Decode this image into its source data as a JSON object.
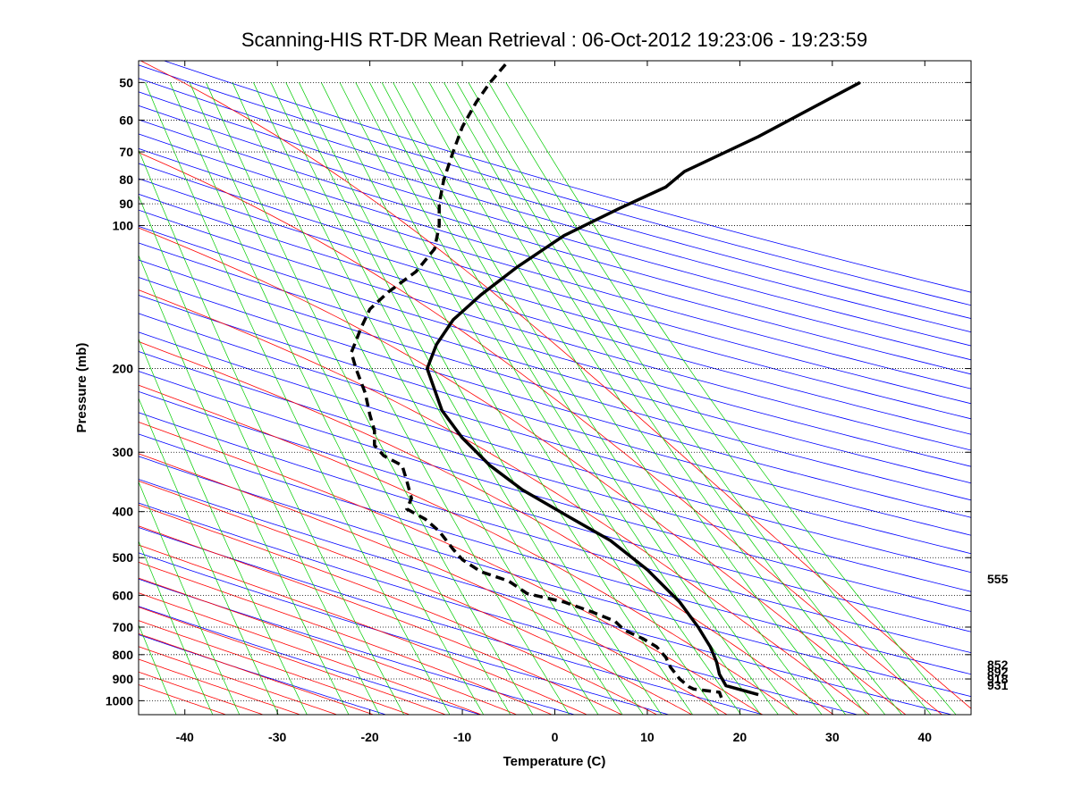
{
  "chart_data": {
    "type": "line",
    "title": "Scanning-HIS RT-DR Mean Retrieval : 06-Oct-2012 19:23:06 - 19:23:59",
    "xlabel": "Temperature (C)",
    "ylabel": "Pressure (mb)",
    "xlim": [
      -45,
      45
    ],
    "ylim": [
      1070,
      45
    ],
    "y_scale": "log",
    "x_ticks": [
      -40,
      -30,
      -20,
      -10,
      0,
      10,
      20,
      30,
      40
    ],
    "y_ticks": [
      50,
      60,
      70,
      80,
      90,
      100,
      200,
      300,
      400,
      500,
      600,
      700,
      800,
      900,
      1000
    ],
    "grid": "dotted horizontal at pressure ticks",
    "background_lines": {
      "dry_adiabats_color": "#0000ff",
      "moist_adiabats_color": "#ff0000",
      "mixing_ratio_color": "#00cc00",
      "overlap_color": "#7a2a9a"
    },
    "series": [
      {
        "style": "solid",
        "color": "#000000",
        "points": [
          [
            22,
            971
          ],
          [
            18.5,
            930
          ],
          [
            17.8,
            880
          ],
          [
            17.5,
            830
          ],
          [
            16.8,
            770
          ],
          [
            15.5,
            700
          ],
          [
            13.5,
            620
          ],
          [
            10,
            530
          ],
          [
            6,
            460
          ],
          [
            1.5,
            410
          ],
          [
            -3.5,
            360
          ],
          [
            -7,
            320
          ],
          [
            -10,
            280
          ],
          [
            -12.2,
            245
          ],
          [
            -13.8,
            200
          ],
          [
            -12.8,
            178
          ],
          [
            -11,
            158
          ],
          [
            -8,
            140
          ],
          [
            -4,
            122
          ],
          [
            1,
            105
          ],
          [
            7,
            92
          ],
          [
            12,
            83
          ],
          [
            14,
            77
          ],
          [
            22,
            65
          ],
          [
            33,
            50
          ]
        ]
      },
      {
        "style": "dashed",
        "color": "#000000",
        "points": [
          [
            18,
            985
          ],
          [
            17.8,
            960
          ],
          [
            15,
            945
          ],
          [
            14.5,
            935
          ],
          [
            13.5,
            900
          ],
          [
            12.5,
            850
          ],
          [
            12,
            810
          ],
          [
            11,
            770
          ],
          [
            9.5,
            740
          ],
          [
            7.5,
            710
          ],
          [
            6.5,
            680
          ],
          [
            4,
            650
          ],
          [
            1,
            620
          ],
          [
            -3,
            595
          ],
          [
            -5,
            560
          ],
          [
            -8,
            535
          ],
          [
            -10,
            505
          ],
          [
            -11,
            480
          ],
          [
            -12.5,
            440
          ],
          [
            -14,
            415
          ],
          [
            -16,
            395
          ],
          [
            -15.5,
            375
          ],
          [
            -16,
            345
          ],
          [
            -16.5,
            320
          ],
          [
            -18.5,
            305
          ],
          [
            -19.5,
            290
          ],
          [
            -19.5,
            270
          ],
          [
            -20,
            250
          ],
          [
            -20.5,
            225
          ],
          [
            -21.5,
            200
          ],
          [
            -22,
            185
          ],
          [
            -21.5,
            175
          ],
          [
            -21,
            165
          ],
          [
            -20,
            150
          ],
          [
            -18,
            138
          ],
          [
            -15,
            125
          ],
          [
            -13,
            112
          ],
          [
            -12.5,
            100
          ],
          [
            -12.5,
            90
          ],
          [
            -12,
            80
          ],
          [
            -11,
            70
          ],
          [
            -10,
            62
          ],
          [
            -8.5,
            55
          ],
          [
            -7,
            50
          ],
          [
            -5,
            45
          ]
        ]
      }
    ],
    "right_labels": [
      "555",
      "852",
      "892",
      "918",
      "931"
    ]
  }
}
